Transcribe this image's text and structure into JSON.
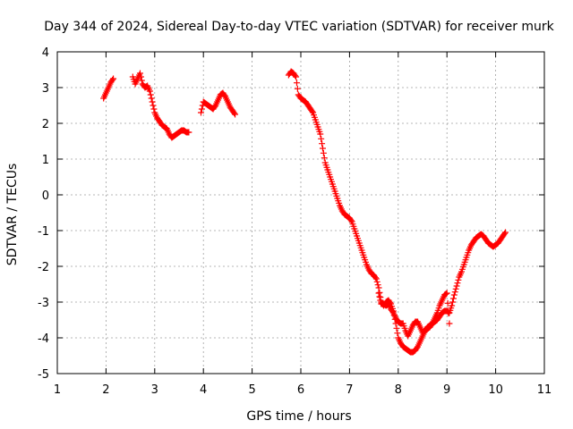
{
  "chart_data": {
    "type": "scatter",
    "title": "Day 344 of 2024, Sidereal Day-to-day VTEC variation (SDTVAR) for receiver murk",
    "xlabel": "GPS time / hours",
    "ylabel": "SDTVAR / TECUs",
    "xlim": [
      1,
      11
    ],
    "ylim": [
      -5,
      4
    ],
    "xticks": [
      "1",
      "2",
      "3",
      "4",
      "5",
      "6",
      "7",
      "8",
      "9",
      "10",
      "11"
    ],
    "yticks": [
      "4",
      "3",
      "2",
      "1",
      "0",
      "-1",
      "-2",
      "-3",
      "-4",
      "-5"
    ],
    "grid": true,
    "marker": "+",
    "series": [
      {
        "name": "SDTVAR",
        "color": "#ff0000",
        "segments": [
          {
            "x": [
              1.95,
              2.0,
              2.05,
              2.1,
              2.15
            ],
            "y": [
              2.7,
              2.85,
              3.0,
              3.15,
              3.25
            ]
          },
          {
            "x": [
              2.55,
              2.6,
              2.65,
              2.7,
              2.75,
              2.8,
              2.85,
              2.9,
              2.95,
              3.0,
              3.05,
              3.1,
              3.15,
              3.2,
              3.25,
              3.3,
              3.35,
              3.4,
              3.45,
              3.5,
              3.55,
              3.6,
              3.65,
              3.7
            ],
            "y": [
              3.3,
              3.1,
              3.25,
              3.4,
              3.1,
              3.0,
              3.05,
              2.9,
              2.6,
              2.3,
              2.15,
              2.05,
              1.95,
              1.9,
              1.85,
              1.7,
              1.6,
              1.65,
              1.7,
              1.75,
              1.8,
              1.8,
              1.75,
              1.75
            ]
          },
          {
            "x": [
              3.95,
              4.0,
              4.05,
              4.1,
              4.15,
              4.2,
              4.25,
              4.3,
              4.35,
              4.4,
              4.45,
              4.5,
              4.55,
              4.6,
              4.65
            ],
            "y": [
              2.3,
              2.6,
              2.55,
              2.5,
              2.45,
              2.4,
              2.5,
              2.65,
              2.8,
              2.85,
              2.75,
              2.6,
              2.45,
              2.35,
              2.25
            ]
          },
          {
            "x": [
              5.75,
              5.8,
              5.85,
              5.9,
              5.95,
              6.0,
              6.05,
              6.1,
              6.15,
              6.2,
              6.25,
              6.3,
              6.35,
              6.4,
              6.45,
              6.5,
              6.55,
              6.6,
              6.65,
              6.7,
              6.75,
              6.8,
              6.85,
              6.9,
              6.95,
              7.0,
              7.05,
              7.1,
              7.15,
              7.2,
              7.25,
              7.3,
              7.35,
              7.4,
              7.45,
              7.5,
              7.55,
              7.6,
              7.65,
              7.7,
              7.75,
              7.8,
              7.85,
              7.9,
              7.95,
              8.0,
              8.05,
              8.1,
              8.15,
              8.2,
              8.25,
              8.3,
              8.35,
              8.4,
              8.45,
              8.5,
              8.55,
              8.6,
              8.65,
              8.7,
              8.75,
              8.8,
              8.85,
              8.9,
              8.95,
              9.0,
              9.05,
              9.1,
              9.15,
              9.2,
              9.25,
              9.3,
              9.35,
              9.4,
              9.45,
              9.5,
              9.55,
              9.6,
              9.65,
              9.7,
              9.75,
              9.8,
              9.85,
              9.9,
              9.95,
              10.0,
              10.05,
              10.1,
              10.15,
              10.2
            ],
            "y": [
              3.35,
              3.45,
              3.4,
              3.3,
              2.8,
              2.7,
              2.65,
              2.6,
              2.5,
              2.4,
              2.3,
              2.1,
              1.9,
              1.7,
              1.3,
              0.9,
              0.7,
              0.5,
              0.3,
              0.1,
              -0.1,
              -0.3,
              -0.45,
              -0.55,
              -0.6,
              -0.65,
              -0.75,
              -0.95,
              -1.15,
              -1.35,
              -1.55,
              -1.75,
              -1.95,
              -2.1,
              -2.2,
              -2.25,
              -2.35,
              -2.6,
              -3.0,
              -3.1,
              -3.0,
              -2.95,
              -3.05,
              -3.25,
              -3.6,
              -4.0,
              -4.15,
              -4.25,
              -4.3,
              -4.35,
              -4.4,
              -4.4,
              -4.35,
              -4.25,
              -4.1,
              -3.95,
              -3.8,
              -3.7,
              -3.65,
              -3.6,
              -3.55,
              -3.5,
              -3.4,
              -3.3,
              -3.25,
              -3.25,
              -3.3,
              -3.1,
              -2.8,
              -2.55,
              -2.3,
              -2.15,
              -1.95,
              -1.75,
              -1.55,
              -1.4,
              -1.3,
              -1.2,
              -1.15,
              -1.1,
              -1.15,
              -1.25,
              -1.35,
              -1.4,
              -1.45,
              -1.4,
              -1.35,
              -1.25,
              -1.15,
              -1.05
            ]
          },
          {
            "x": [
              7.6,
              7.65,
              7.7,
              7.75,
              7.8,
              7.85,
              7.9,
              7.95,
              8.0,
              8.05,
              8.1,
              8.15,
              8.2,
              8.25,
              8.3,
              8.35,
              8.4,
              8.45,
              8.5,
              8.55,
              8.6,
              8.65,
              8.7,
              8.75,
              8.8,
              8.85,
              8.9,
              8.95,
              9.0,
              9.05
            ],
            "y": [
              -2.75,
              -3.05,
              -3.05,
              -3.1,
              -3.05,
              -3.2,
              -3.3,
              -3.45,
              -3.55,
              -3.6,
              -3.6,
              -3.8,
              -3.95,
              -3.8,
              -3.65,
              -3.55,
              -3.55,
              -3.7,
              -3.85,
              -3.8,
              -3.75,
              -3.7,
              -3.6,
              -3.45,
              -3.3,
              -3.1,
              -2.95,
              -2.8,
              -2.75,
              -3.6
            ]
          }
        ]
      }
    ]
  }
}
